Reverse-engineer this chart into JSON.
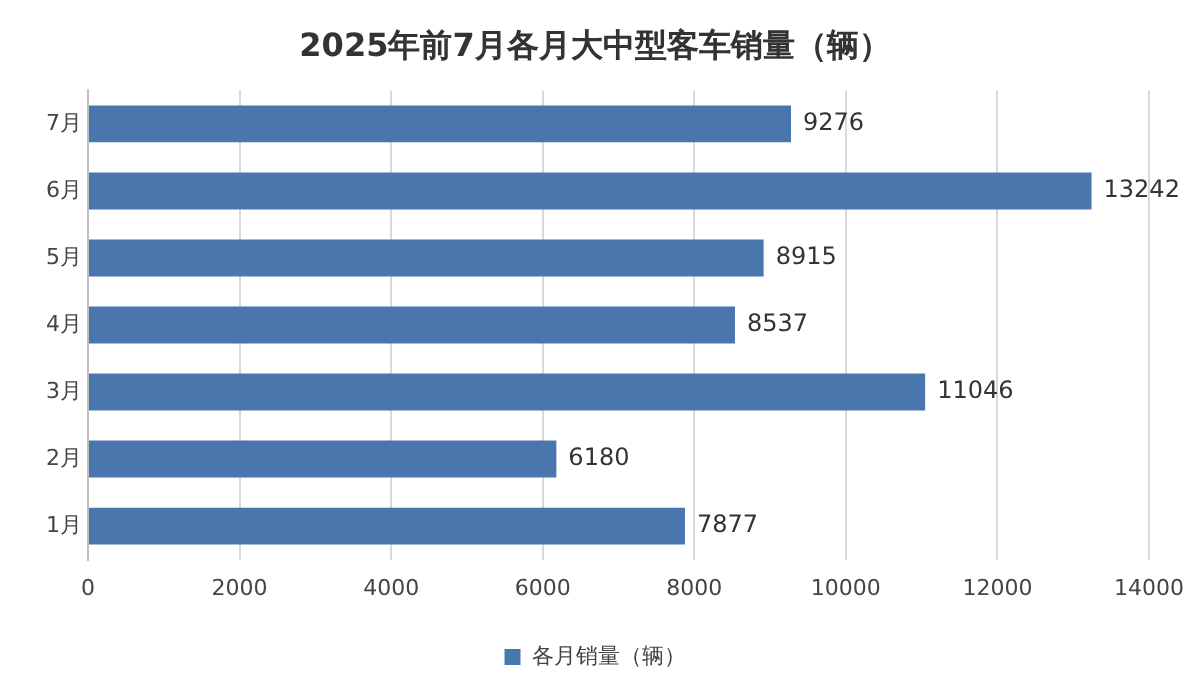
{
  "chart_data": {
    "type": "bar",
    "orientation": "horizontal",
    "title": "2025年前7月各月大中型客车销量（辆）",
    "categories": [
      "7月",
      "6月",
      "5月",
      "4月",
      "3月",
      "2月",
      "1月"
    ],
    "series": [
      {
        "name": "各月销量（辆）",
        "color": "#4a76ae",
        "values": [
          9276,
          13242,
          8915,
          8537,
          11046,
          6180,
          7877
        ]
      }
    ],
    "xlim": [
      0,
      14000
    ],
    "xticks": [
      0,
      2000,
      4000,
      6000,
      8000,
      10000,
      12000,
      14000
    ],
    "grid": "x",
    "legend": "bottom",
    "data_labels": true
  }
}
